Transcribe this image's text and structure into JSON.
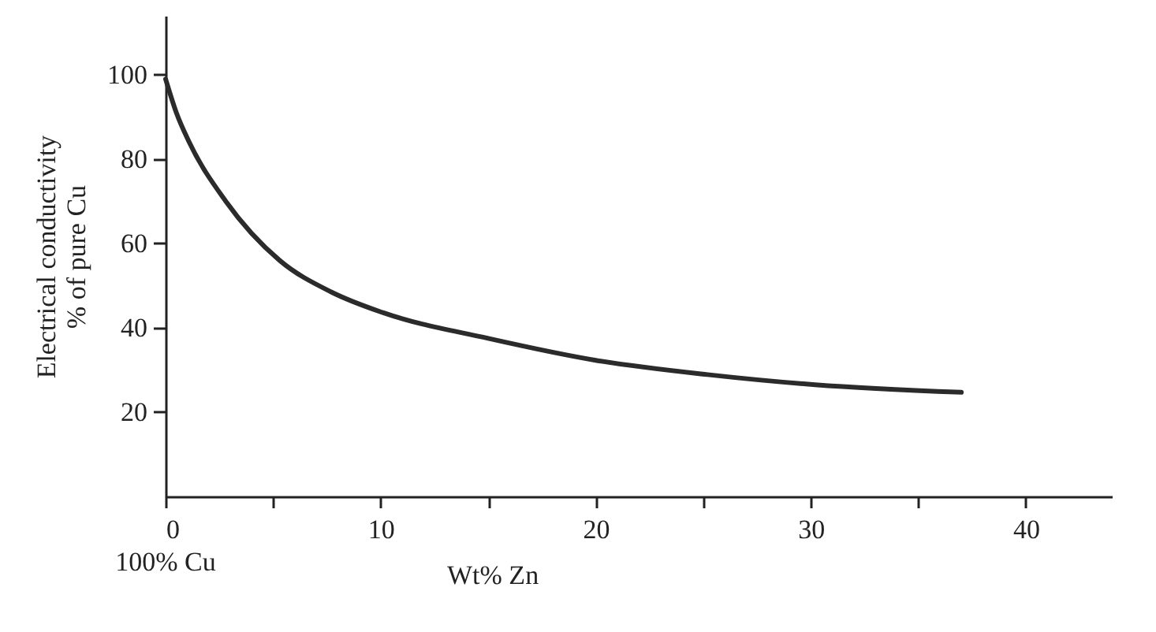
{
  "chart_data": {
    "type": "line",
    "xlabel": "Wt% Zn",
    "ylabel": "Electrical conductivity\n% of pure Cu",
    "x": [
      0,
      0.5,
      1.1,
      2.8,
      5.3,
      7.7,
      10.1,
      15,
      20,
      25.2,
      30.2,
      37
    ],
    "series": [
      {
        "color": "#2b2b2b",
        "values": [
          99,
          91,
          84,
          70,
          56,
          48.5,
          43.6,
          37.5,
          32.3,
          28.9,
          26.5,
          24.7
        ]
      }
    ],
    "xlim": [
      0,
      44
    ],
    "ylim": [
      0,
      114
    ],
    "xticks": [
      0,
      {
        "value": 5,
        "label": null
      },
      10,
      {
        "value": 15,
        "label": null
      },
      20,
      {
        "value": 25,
        "label": null
      },
      30,
      {
        "value": 35,
        "label": null
      },
      40
    ],
    "yticks": [
      20,
      40,
      60,
      80,
      100
    ],
    "annotations": [
      "100% Cu"
    ],
    "grid": false,
    "marker": "none",
    "line_style": "solid"
  }
}
